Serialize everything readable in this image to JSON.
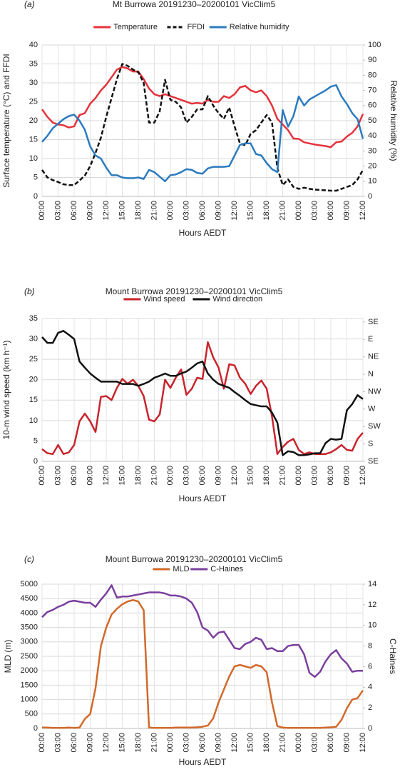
{
  "chart_data": [
    {
      "type": "line",
      "panel_label": "(a)",
      "title": "Mt Burrowa 20191230–20200101 VicClim5",
      "x_label": "Hours AEDT",
      "y_label": "Surface temperature (°C) and FFDI",
      "y2_label": "Relative humidity (%)",
      "categories": [
        "00:00",
        null,
        null,
        "03:00",
        null,
        null,
        "06:00",
        null,
        null,
        "09:00",
        null,
        null,
        "12:00",
        null,
        null,
        "15:00",
        null,
        null,
        "18:00",
        null,
        null,
        "21:00",
        null,
        null,
        "00:00",
        null,
        null,
        "03:00",
        null,
        null,
        "06:00",
        null,
        null,
        "09:00",
        null,
        null,
        "12:00",
        null,
        null,
        "15:00",
        null,
        null,
        "18:00",
        null,
        null,
        "21:00",
        null,
        null,
        "00:00",
        null,
        null,
        "03:00",
        null,
        null,
        "06:00",
        null,
        null,
        "09:00",
        null,
        null,
        "12:00"
      ],
      "ylim": [
        0,
        40
      ],
      "yticks": [
        0,
        5,
        10,
        15,
        20,
        25,
        30,
        35,
        40
      ],
      "y2lim": [
        0,
        100
      ],
      "y2ticks": [
        0,
        10,
        20,
        30,
        40,
        50,
        60,
        70,
        80,
        90,
        100
      ],
      "grid": true,
      "series": [
        {
          "name": "Temperature",
          "color": "#e5323b",
          "dashed": false,
          "values": [
            23,
            21,
            19.5,
            19,
            18.8,
            18.2,
            18.5,
            21.5,
            22,
            24.5,
            26,
            28,
            29.5,
            31.5,
            33.5,
            34.2,
            33.8,
            33,
            33,
            31,
            28.5,
            27,
            26.5,
            27,
            26.5,
            26,
            25.5,
            25,
            24.5,
            24.7,
            24.5,
            25.5,
            25,
            25,
            26.5,
            26,
            27,
            28.8,
            29.2,
            28,
            27.5,
            28,
            26.5,
            24,
            20.5,
            19,
            17.5,
            15.3,
            15.2,
            14.3,
            14,
            13.7,
            13.5,
            13.3,
            13,
            14.3,
            14.5,
            15.8,
            16.8,
            18.5,
            21.8
          ]
        },
        {
          "name": "FFDI",
          "color": "#111111",
          "dashed": true,
          "values": [
            7,
            5,
            4.3,
            3.8,
            3.2,
            3,
            3,
            4.2,
            5.5,
            8,
            11.5,
            15.5,
            21,
            26,
            31,
            35,
            34.5,
            33.5,
            32.8,
            30,
            19.5,
            19.5,
            22.5,
            30.8,
            25.5,
            25,
            23.5,
            19.5,
            21,
            23,
            23,
            26.5,
            24,
            22,
            20.5,
            23.5,
            18.5,
            14,
            13.5,
            16.5,
            17.5,
            19.5,
            21.5,
            19.5,
            7.5,
            3,
            4.5,
            2.5,
            2,
            2.3,
            2,
            1.8,
            1.7,
            1.6,
            1.5,
            1.5,
            2,
            2.5,
            3,
            4.5,
            7
          ]
        },
        {
          "name": "Relative humidity",
          "color": "#2b7bc0",
          "dashed": false,
          "axis": "y2",
          "values": [
            36,
            40,
            45,
            48,
            51,
            53,
            54,
            50,
            44,
            33,
            27,
            25,
            19,
            14,
            14,
            12.5,
            12,
            12,
            12.5,
            11.5,
            17.5,
            16,
            13,
            10,
            14,
            14.5,
            16,
            18,
            17.5,
            15.5,
            15,
            18.5,
            19.5,
            19.5,
            19.5,
            20,
            27,
            34,
            35,
            35,
            28,
            27,
            22,
            18,
            16,
            57,
            46,
            53,
            66,
            60,
            64,
            66,
            68,
            70,
            72.5,
            73.5,
            66,
            61,
            55,
            51,
            38
          ]
        }
      ]
    },
    {
      "type": "line",
      "panel_label": "(b)",
      "title": "Mount Burrowa 20191230–20200101 VicClim5",
      "x_label": "Hours AEDT",
      "y_label": "10-m wind speed (km h⁻¹)",
      "categories": [
        "00:00",
        null,
        null,
        "03:00",
        null,
        null,
        "06:00",
        null,
        null,
        "09:00",
        null,
        null,
        "12:00",
        null,
        null,
        "15:00",
        null,
        null,
        "18:00",
        null,
        null,
        "21:00",
        null,
        null,
        "00:00",
        null,
        null,
        "03:00",
        null,
        null,
        "06:00",
        null,
        null,
        "09:00",
        null,
        null,
        "12:00",
        null,
        null,
        "15:00",
        null,
        null,
        "18:00",
        null,
        null,
        "21:00",
        null,
        null,
        "00:00",
        null,
        null,
        "03:00",
        null,
        null,
        "06:00",
        null,
        null,
        "09:00",
        null,
        null,
        "12:00"
      ],
      "ylim": [
        0,
        35
      ],
      "yticks": [
        0,
        5,
        10,
        15,
        20,
        25,
        30,
        35
      ],
      "y2lim": [
        135,
        504
      ],
      "y2ticks": [
        {
          "value": 135,
          "label": "SE"
        },
        {
          "value": 180,
          "label": "S"
        },
        {
          "value": 225,
          "label": "SW"
        },
        {
          "value": 270,
          "label": "W"
        },
        {
          "value": 315,
          "label": "NW"
        },
        {
          "value": 360,
          "label": "N"
        },
        {
          "value": 405,
          "label": "NE"
        },
        {
          "value": 450,
          "label": "E"
        },
        {
          "value": 495,
          "label": "SE"
        }
      ],
      "grid": true,
      "series": [
        {
          "name": "Wind speed",
          "color": "#c8242c",
          "dashed": false,
          "values": [
            3,
            2,
            1.8,
            4,
            1.8,
            2.2,
            4,
            9.8,
            11.7,
            9.8,
            7.2,
            15.8,
            16,
            15,
            18,
            20.2,
            19,
            20,
            18.5,
            16,
            10.2,
            9.8,
            11.5,
            20,
            18,
            20.5,
            22.5,
            16.3,
            17.8,
            20.5,
            20.2,
            29.2,
            25.5,
            23,
            17.8,
            23.8,
            23.5,
            20.5,
            19,
            16.5,
            18.5,
            19.8,
            17.8,
            11,
            1.8,
            3.5,
            4.8,
            5.5,
            2.8,
            1.8,
            2.2,
            1.8,
            1.8,
            1.8,
            2.2,
            3,
            4,
            2.8,
            2.6,
            5.5,
            7
          ]
        },
        {
          "name": "Wind direction",
          "color": "#111111",
          "dashed": false,
          "axis": "y2",
          "values": [
            456,
            441,
            441,
            467,
            472,
            462,
            451,
            393,
            377,
            362,
            351,
            341,
            341,
            341,
            341,
            335,
            335,
            335,
            330,
            335,
            341,
            351,
            356,
            362,
            356,
            356,
            362,
            367,
            377,
            388,
            393,
            362,
            346,
            335,
            330,
            325,
            314,
            304,
            293,
            283,
            280,
            277,
            277,
            261,
            235,
            151,
            161,
            159,
            151,
            151,
            153,
            156,
            156,
            182,
            193,
            191,
            193,
            267,
            283,
            306,
            296
          ]
        }
      ]
    },
    {
      "type": "line",
      "panel_label": "(c)",
      "title": "Mount Burrowa 20191230–20200101 VicClim5",
      "x_label": "Hours AEDT",
      "y_label": "MLD (m)",
      "y2_label": "C-Haines",
      "categories": [
        "00:00",
        null,
        null,
        "03:00",
        null,
        null,
        "06:00",
        null,
        null,
        "09:00",
        null,
        null,
        "12:00",
        null,
        null,
        "15:00",
        null,
        null,
        "18:00",
        null,
        null,
        "21:00",
        null,
        null,
        "00:00",
        null,
        null,
        "03:00",
        null,
        null,
        "06:00",
        null,
        null,
        "09:00",
        null,
        null,
        "12:00",
        null,
        null,
        "15:00",
        null,
        null,
        "18:00",
        null,
        null,
        "21:00",
        null,
        null,
        "00:00",
        null,
        null,
        "03:00",
        null,
        null,
        "06:00",
        null,
        null,
        "09:00",
        null,
        null,
        "12:00"
      ],
      "ylim": [
        0,
        5000
      ],
      "yticks": [
        0,
        500,
        1000,
        1500,
        2000,
        2500,
        3000,
        3500,
        4000,
        4500,
        5000
      ],
      "y2lim": [
        0,
        14
      ],
      "y2ticks": [
        0,
        2,
        4,
        6,
        8,
        10,
        12,
        14
      ],
      "grid": true,
      "series": [
        {
          "name": "MLD",
          "color": "#d2692a",
          "dashed": false,
          "values": [
            30,
            30,
            20,
            20,
            20,
            30,
            20,
            30,
            330,
            500,
            1400,
            2850,
            3500,
            3950,
            4150,
            4300,
            4400,
            4450,
            4400,
            4100,
            30,
            20,
            20,
            20,
            20,
            30,
            30,
            30,
            30,
            40,
            60,
            100,
            350,
            900,
            1350,
            1800,
            2150,
            2200,
            2150,
            2100,
            2200,
            2150,
            1950,
            900,
            80,
            30,
            20,
            20,
            20,
            20,
            20,
            20,
            20,
            30,
            40,
            60,
            300,
            700,
            1000,
            1050,
            1320
          ]
        },
        {
          "name": "C-Haines",
          "color": "#7b3f9e",
          "dashed": false,
          "axis": "y2",
          "values": [
            10.8,
            11.3,
            11.5,
            11.8,
            12,
            12.3,
            12.4,
            12.3,
            12.2,
            12.2,
            11.8,
            12.5,
            13.1,
            13.9,
            12.7,
            12.8,
            12.8,
            12.9,
            13,
            13.1,
            13.2,
            13.2,
            13.2,
            13.1,
            12.9,
            12.9,
            12.8,
            12.6,
            12.2,
            11.3,
            9.8,
            9.5,
            8.8,
            9.3,
            9.4,
            8.6,
            7.8,
            7.7,
            8.2,
            8.4,
            8.8,
            8.6,
            7.7,
            7.8,
            7.5,
            7.5,
            8,
            8.1,
            8.1,
            7.2,
            5.4,
            5,
            5.5,
            6.5,
            7.2,
            7.6,
            6.8,
            6.3,
            5.5,
            5.6,
            5.6
          ]
        }
      ]
    }
  ]
}
